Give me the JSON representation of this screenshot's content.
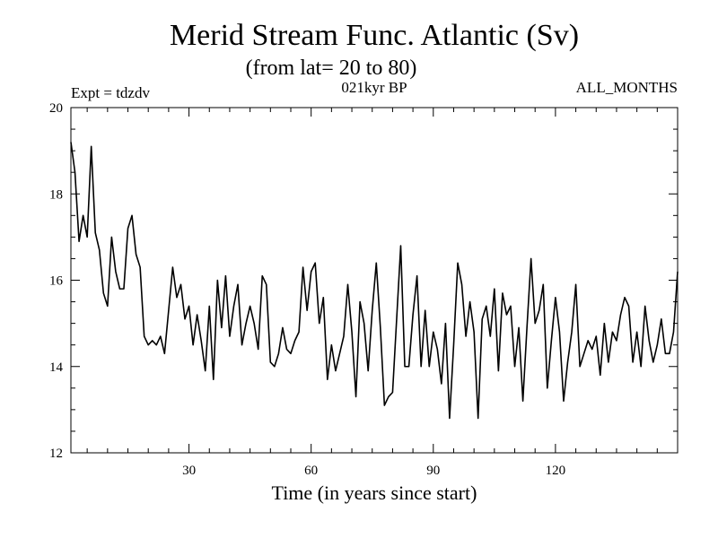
{
  "chart_data": {
    "type": "line",
    "title": "Merid Stream Func. Atlantic (Sv)",
    "subtitle": "(from lat= 20 to 80)",
    "annotation_left": "Expt = tdzdv",
    "annotation_center": "021kyr BP",
    "annotation_right": "ALL_MONTHS",
    "xlabel": "Time (in years since start)",
    "ylabel": "",
    "xlim": [
      1,
      150
    ],
    "ylim": [
      12,
      20
    ],
    "x_ticks": [
      30,
      60,
      90,
      120
    ],
    "y_ticks": [
      12,
      14,
      16,
      18,
      20
    ],
    "x_minor_step": 5,
    "y_minor_step": 0.5,
    "grid": false,
    "color": "#000000",
    "series": [
      {
        "name": "Merid Stream Func. Atlantic",
        "x_start": 1,
        "x_step": 1,
        "values": [
          19.2,
          18.5,
          16.9,
          17.5,
          17.0,
          19.1,
          17.1,
          16.7,
          15.7,
          15.4,
          17.0,
          16.2,
          15.8,
          15.8,
          17.2,
          17.5,
          16.6,
          16.3,
          14.7,
          14.5,
          14.6,
          14.5,
          14.7,
          14.3,
          15.3,
          16.3,
          15.6,
          15.9,
          15.1,
          15.4,
          14.5,
          15.2,
          14.6,
          13.9,
          15.4,
          13.7,
          16.0,
          14.9,
          16.1,
          14.7,
          15.4,
          15.9,
          14.5,
          15.0,
          15.4,
          15.0,
          14.4,
          16.1,
          15.9,
          14.1,
          14.0,
          14.3,
          14.9,
          14.4,
          14.3,
          14.6,
          14.8,
          16.3,
          15.3,
          16.2,
          16.4,
          15.0,
          15.6,
          13.7,
          14.5,
          13.9,
          14.3,
          14.7,
          15.9,
          14.8,
          13.3,
          15.5,
          15.0,
          13.9,
          15.3,
          16.4,
          14.9,
          13.1,
          13.3,
          13.4,
          15.1,
          16.8,
          14.0,
          14.0,
          15.2,
          16.1,
          14.0,
          15.3,
          14.0,
          14.8,
          14.4,
          13.6,
          15.0,
          12.8,
          14.5,
          16.4,
          15.9,
          14.7,
          15.5,
          14.8,
          12.8,
          15.1,
          15.4,
          14.7,
          15.8,
          13.9,
          15.7,
          15.2,
          15.4,
          14.0,
          14.9,
          13.2,
          14.9,
          16.5,
          15.0,
          15.3,
          15.9,
          13.5,
          14.6,
          15.6,
          14.8,
          13.2,
          14.1,
          14.8,
          15.9,
          14.0,
          14.3,
          14.6,
          14.4,
          14.7,
          13.8,
          15.0,
          14.1,
          14.8,
          14.6,
          15.2,
          15.6,
          15.4,
          14.1,
          14.8,
          14.0,
          15.4,
          14.6,
          14.1,
          14.5,
          15.1,
          14.3,
          14.3,
          14.8,
          16.2
        ]
      }
    ]
  }
}
